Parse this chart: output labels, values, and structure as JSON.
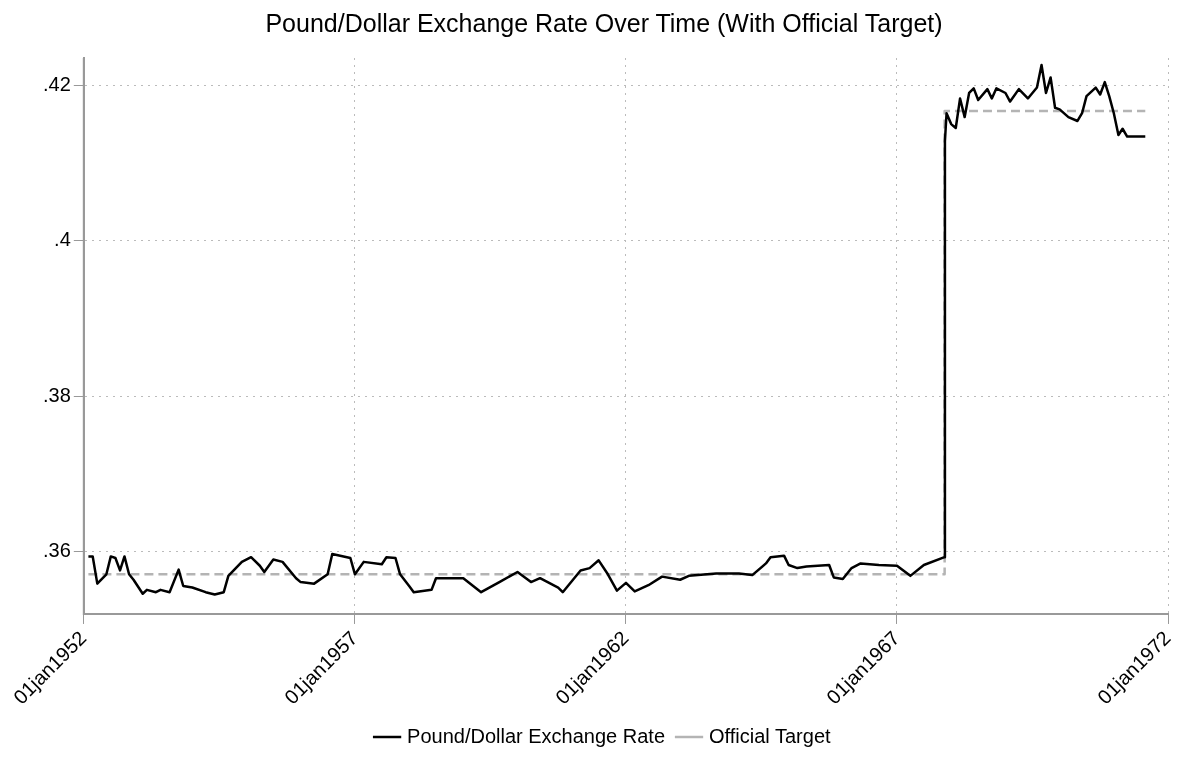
{
  "chart_data": {
    "type": "line",
    "title": "Pound/Dollar Exchange Rate Over Time (With Official Target)",
    "series": [
      {
        "name": "Pound/Dollar Exchange Rate",
        "color": "#000000",
        "line_style": "solid",
        "x": [
          "1952-02",
          "1952-03",
          "1952-04",
          "1952-06",
          "1952-07",
          "1952-08",
          "1952-09",
          "1952-10",
          "1952-11",
          "1952-12",
          "1953-02",
          "1953-03",
          "1953-05",
          "1953-06",
          "1953-08",
          "1953-10",
          "1953-11",
          "1954-01",
          "1954-04",
          "1954-06",
          "1954-08",
          "1954-09",
          "1954-12",
          "1955-02",
          "1955-04",
          "1955-05",
          "1955-07",
          "1955-09",
          "1955-12",
          "1956-01",
          "1956-04",
          "1956-07",
          "1956-08",
          "1956-12",
          "1957-01",
          "1957-03",
          "1957-07",
          "1957-08",
          "1957-10",
          "1957-11",
          "1958-01",
          "1958-02",
          "1958-06",
          "1958-07",
          "1958-10",
          "1959-01",
          "1959-05",
          "1959-09",
          "1960-01",
          "1960-04",
          "1960-06",
          "1960-10",
          "1960-11",
          "1961-03",
          "1961-05",
          "1961-07",
          "1961-09",
          "1961-11",
          "1962-01",
          "1962-03",
          "1962-06",
          "1962-09",
          "1963-01",
          "1963-03",
          "1963-09",
          "1964-02",
          "1964-05",
          "1964-08",
          "1964-09",
          "1964-12",
          "1965-01",
          "1965-03",
          "1965-05",
          "1965-10",
          "1965-11",
          "1966-01",
          "1966-03",
          "1966-05",
          "1966-09",
          "1967-01",
          "1967-04",
          "1967-07",
          "1967-11-17",
          "1967-11-20",
          "1967-12",
          "1968-01",
          "1968-02",
          "1968-03",
          "1968-04",
          "1968-05",
          "1968-06",
          "1968-07",
          "1968-09",
          "1968-10",
          "1968-11",
          "1969-01",
          "1969-02",
          "1969-04",
          "1969-06",
          "1969-08",
          "1969-09",
          "1969-10",
          "1969-11",
          "1969-12",
          "1970-01",
          "1970-03",
          "1970-05",
          "1970-06",
          "1970-07",
          "1970-09",
          "1970-10",
          "1970-11",
          "1970-12",
          "1971-01",
          "1971-02",
          "1971-03",
          "1971-04",
          "1971-08"
        ],
        "values": [
          0.3594,
          0.3594,
          0.3559,
          0.3571,
          0.3594,
          0.3592,
          0.3576,
          0.3594,
          0.3571,
          0.3564,
          0.3546,
          0.3551,
          0.3548,
          0.3551,
          0.3548,
          0.3577,
          0.3556,
          0.3554,
          0.3548,
          0.3545,
          0.3548,
          0.3569,
          0.3587,
          0.3593,
          0.3582,
          0.3574,
          0.359,
          0.3587,
          0.3566,
          0.3561,
          0.3559,
          0.3571,
          0.3597,
          0.3592,
          0.3571,
          0.3587,
          0.3584,
          0.3593,
          0.3592,
          0.3571,
          0.3556,
          0.3548,
          0.3551,
          0.3566,
          0.3566,
          0.3566,
          0.3548,
          0.3561,
          0.3574,
          0.3561,
          0.3566,
          0.3554,
          0.3548,
          0.3576,
          0.3579,
          0.3589,
          0.3571,
          0.355,
          0.356,
          0.3549,
          0.3557,
          0.3568,
          0.3564,
          0.3569,
          0.3572,
          0.3572,
          0.357,
          0.3585,
          0.3593,
          0.3595,
          0.3583,
          0.3579,
          0.3581,
          0.3583,
          0.3567,
          0.3565,
          0.3579,
          0.3585,
          0.3583,
          0.3582,
          0.3569,
          0.3583,
          0.3593,
          0.4128,
          0.4164,
          0.415,
          0.4145,
          0.4183,
          0.4159,
          0.419,
          0.4196,
          0.4181,
          0.4195,
          0.4183,
          0.4196,
          0.419,
          0.4179,
          0.4195,
          0.4183,
          0.4197,
          0.4226,
          0.419,
          0.421,
          0.4171,
          0.4169,
          0.4159,
          0.4154,
          0.4164,
          0.4186,
          0.4197,
          0.4188,
          0.4204,
          0.4186,
          0.4164,
          0.4136,
          0.4144,
          0.4134,
          0.4134
        ]
      },
      {
        "name": "Official Target",
        "color": "#b4b4b4",
        "line_style": "dashed",
        "x": [
          "1952-02",
          "1967-11-18",
          "1967-11-18",
          "1971-08"
        ],
        "values": [
          0.3571,
          0.3571,
          0.4167,
          0.4167
        ]
      }
    ],
    "xlim": [
      "1952-01-01",
      "1972-01-01"
    ],
    "xticks": [
      {
        "value": "1952-01-01",
        "label": "01jan1952"
      },
      {
        "value": "1957-01-01",
        "label": "01jan1957"
      },
      {
        "value": "1962-01-01",
        "label": "01jan1962"
      },
      {
        "value": "1967-01-01",
        "label": "01jan1967"
      },
      {
        "value": "1972-01-01",
        "label": "01jan1972"
      }
    ],
    "ylim": [
      0.352,
      0.4235
    ],
    "yticks": [
      {
        "value": 0.36,
        "label": ".36"
      },
      {
        "value": 0.38,
        "label": ".38"
      },
      {
        "value": 0.4,
        "label": ".4"
      },
      {
        "value": 0.42,
        "label": ".42"
      }
    ],
    "grid": true,
    "legend": "bottom",
    "marker": "none"
  }
}
